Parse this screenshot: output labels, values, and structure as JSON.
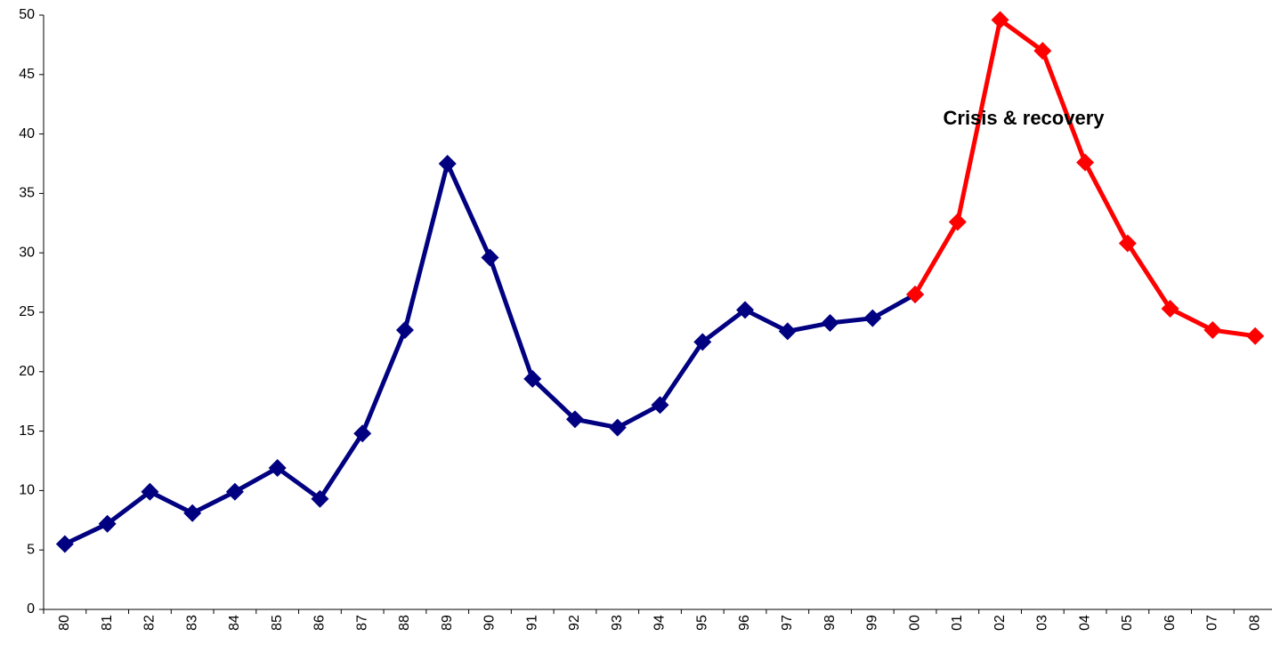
{
  "chart_data": {
    "type": "line",
    "annotation": "Crisis & recovery",
    "categories": [
      "80",
      "81",
      "82",
      "83",
      "84",
      "85",
      "86",
      "87",
      "88",
      "89",
      "90",
      "91",
      "92",
      "93",
      "94",
      "95",
      "96",
      "97",
      "98",
      "99",
      "00",
      "01",
      "02",
      "03",
      "04",
      "05",
      "06",
      "07",
      "08"
    ],
    "series": [
      {
        "color": "#000080",
        "values": [
          5.5,
          7.2,
          9.9,
          8.1,
          9.9,
          11.9,
          9.3,
          14.8,
          23.5,
          37.5,
          29.6,
          19.4,
          16.0,
          15.3,
          17.2,
          22.5,
          25.2,
          23.4,
          24.1,
          24.5,
          26.5,
          null,
          null,
          null,
          null,
          null,
          null,
          null,
          null
        ]
      },
      {
        "color": "#ff0000",
        "values": [
          null,
          null,
          null,
          null,
          null,
          null,
          null,
          null,
          null,
          null,
          null,
          null,
          null,
          null,
          null,
          null,
          null,
          null,
          null,
          null,
          26.5,
          32.6,
          49.6,
          47.0,
          37.6,
          30.8,
          25.3,
          23.5,
          23.0
        ]
      }
    ],
    "ylim": [
      0,
      50
    ],
    "yticks": [
      0,
      5,
      10,
      15,
      20,
      25,
      30,
      35,
      40,
      45,
      50
    ]
  }
}
